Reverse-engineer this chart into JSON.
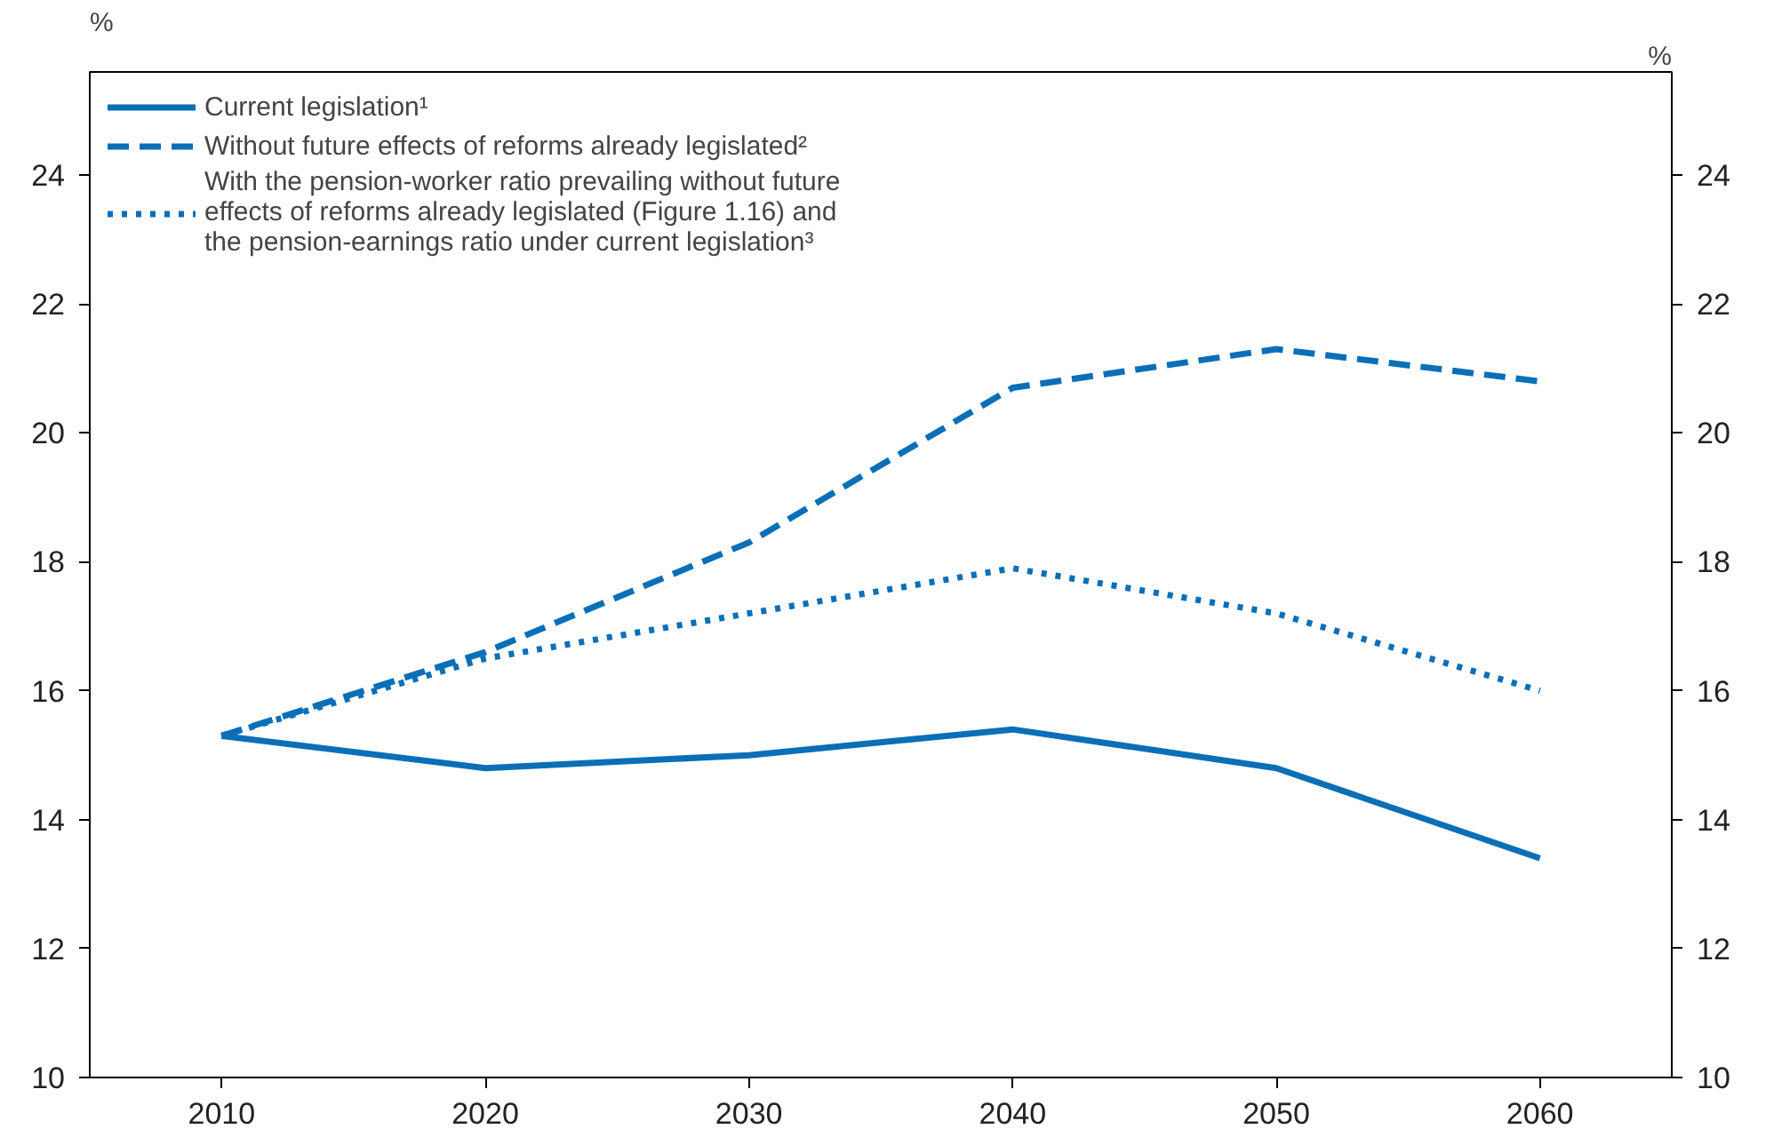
{
  "chart_data": {
    "type": "line",
    "ylabel": "%",
    "y2label": "%",
    "x": [
      2010,
      2020,
      2030,
      2040,
      2050,
      2060
    ],
    "series": [
      {
        "name": "Current legislation¹",
        "color": "#0a6fb7",
        "line_style": "solid",
        "values": [
          15.3,
          14.8,
          15.0,
          15.4,
          14.8,
          13.4
        ]
      },
      {
        "name": "Without future effects of reforms already legislated²",
        "color": "#0a6fb7",
        "line_style": "dashed",
        "values": [
          15.3,
          16.6,
          18.3,
          20.7,
          21.3,
          20.8
        ]
      },
      {
        "name": "With the pension-worker ratio prevailing without future effects of reforms already legislated (Figure 1.16) and the pension-earnings ratio under current legislation³",
        "color": "#0a6fb7",
        "line_style": "dotted",
        "values": [
          15.3,
          16.5,
          17.2,
          17.9,
          17.2,
          16.0
        ]
      }
    ],
    "xlim": [
      2005,
      2065
    ],
    "xticks": [
      2010,
      2020,
      2030,
      2040,
      2050,
      2060
    ],
    "ylim": [
      10,
      25.6
    ],
    "yticks": [
      10,
      12,
      14,
      16,
      18,
      20,
      22,
      24
    ],
    "y2lim": [
      10,
      25.6
    ],
    "y2ticks": [
      10,
      12,
      14,
      16,
      18,
      20,
      22,
      24
    ],
    "grid": false,
    "legend": "top left",
    "marker": "none"
  }
}
